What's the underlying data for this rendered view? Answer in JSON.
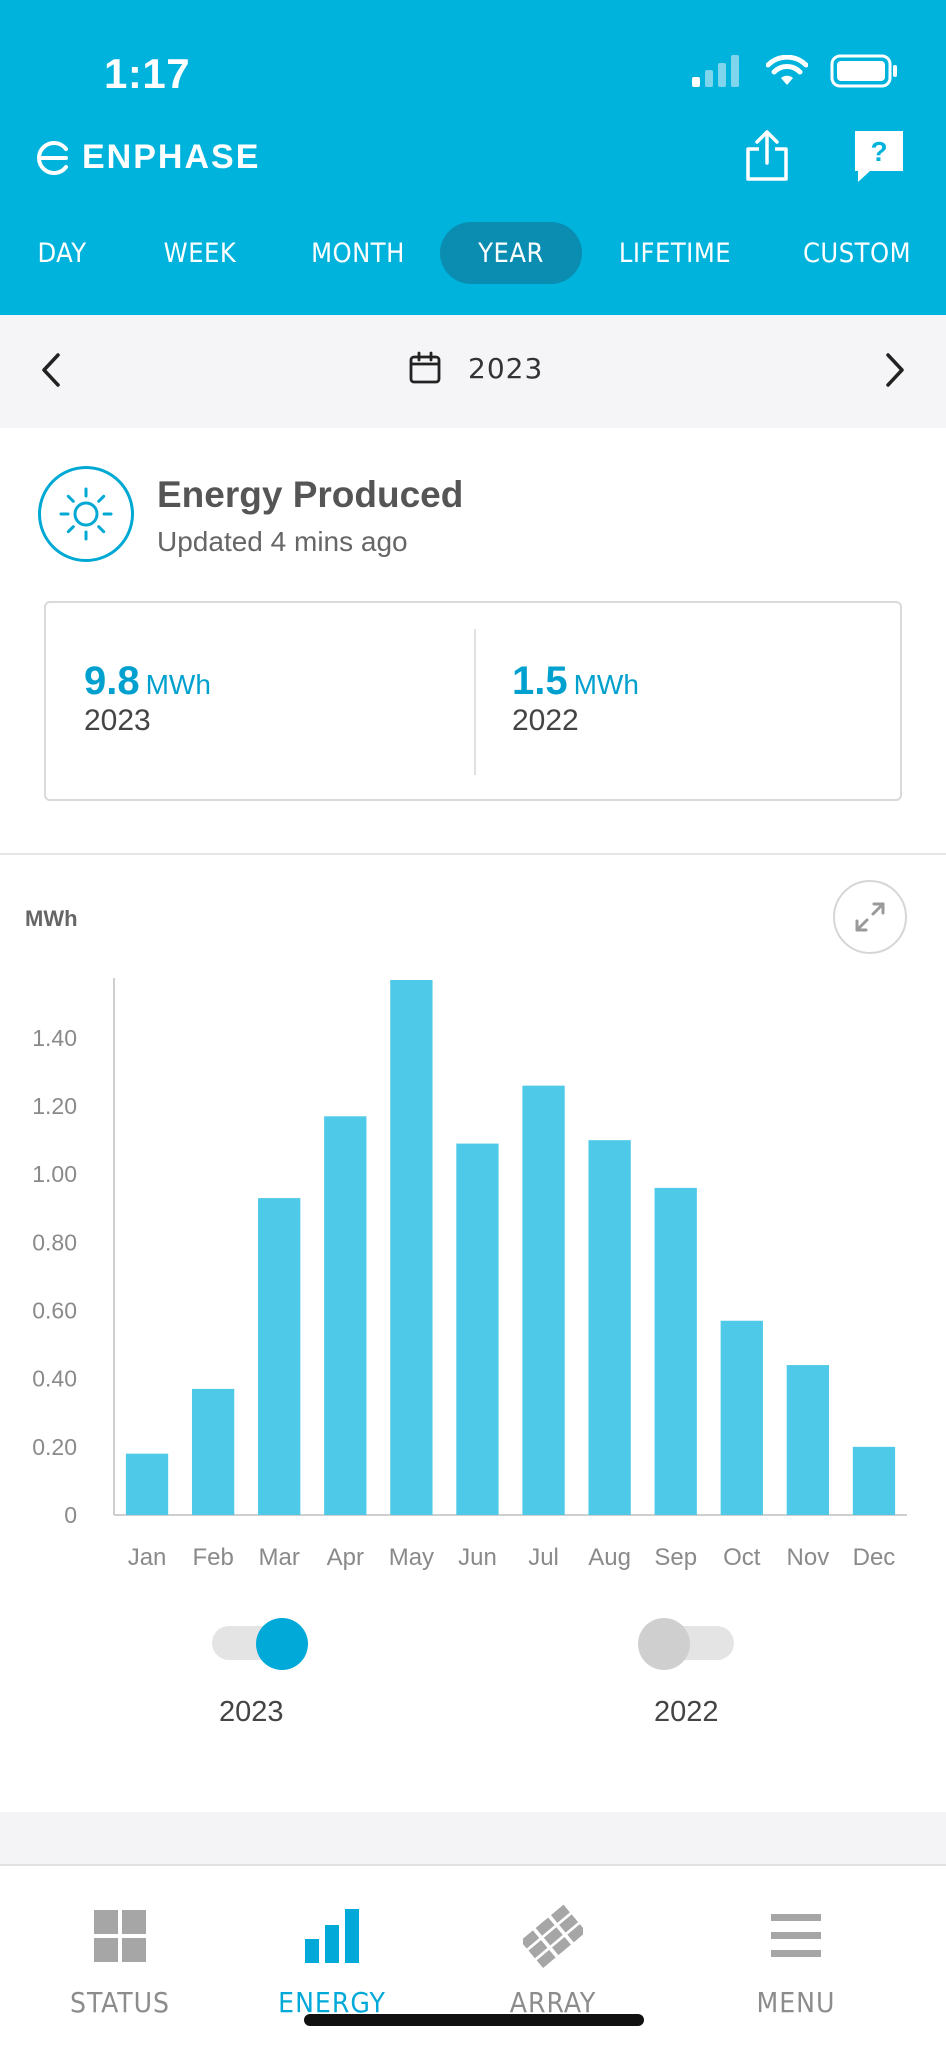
{
  "status_bar": {
    "time": "1:17"
  },
  "header": {
    "brand": "ENPHASE",
    "tabs": [
      {
        "label": "DAY",
        "active": false
      },
      {
        "label": "WEEK",
        "active": false
      },
      {
        "label": "MONTH",
        "active": false
      },
      {
        "label": "YEAR",
        "active": true
      },
      {
        "label": "LIFETIME",
        "active": false
      },
      {
        "label": "CUSTOM",
        "active": false
      }
    ]
  },
  "date_nav": {
    "label": "2023"
  },
  "energy": {
    "title": "Energy Produced",
    "updated": "Updated 4 mins ago",
    "current": {
      "value": "9.8",
      "unit": "MWh",
      "year": "2023"
    },
    "previous": {
      "value": "1.5",
      "unit": "MWh",
      "year": "2022"
    }
  },
  "chart_data": {
    "type": "bar",
    "ylabel": "MWh",
    "categories": [
      "Jan",
      "Feb",
      "Mar",
      "Apr",
      "May",
      "Jun",
      "Jul",
      "Aug",
      "Sep",
      "Oct",
      "Nov",
      "Dec"
    ],
    "series": [
      {
        "name": "2023",
        "values": [
          0.18,
          0.37,
          0.93,
          1.17,
          1.57,
          1.09,
          1.26,
          1.1,
          0.96,
          0.57,
          0.44,
          0.2
        ]
      }
    ],
    "yticks": [
      "0",
      "0.20",
      "0.40",
      "0.60",
      "0.80",
      "1.00",
      "1.20",
      "1.40"
    ],
    "ylim": [
      0,
      1.57
    ],
    "grid": false,
    "bar_color": "#4ec9e8"
  },
  "toggles": [
    {
      "label": "2023",
      "on": true
    },
    {
      "label": "2022",
      "on": false
    }
  ],
  "bottom_nav": [
    {
      "label": "STATUS",
      "icon": "grid-icon",
      "active": false
    },
    {
      "label": "ENERGY",
      "icon": "bar-chart-icon",
      "active": true
    },
    {
      "label": "ARRAY",
      "icon": "solar-array-icon",
      "active": false
    },
    {
      "label": "MENU",
      "icon": "menu-icon",
      "active": false
    }
  ],
  "colors": {
    "brand": "#00b3dc",
    "active_tab": "#0a8db0",
    "accent": "#00a9d8",
    "bar": "#4ec9e8"
  }
}
